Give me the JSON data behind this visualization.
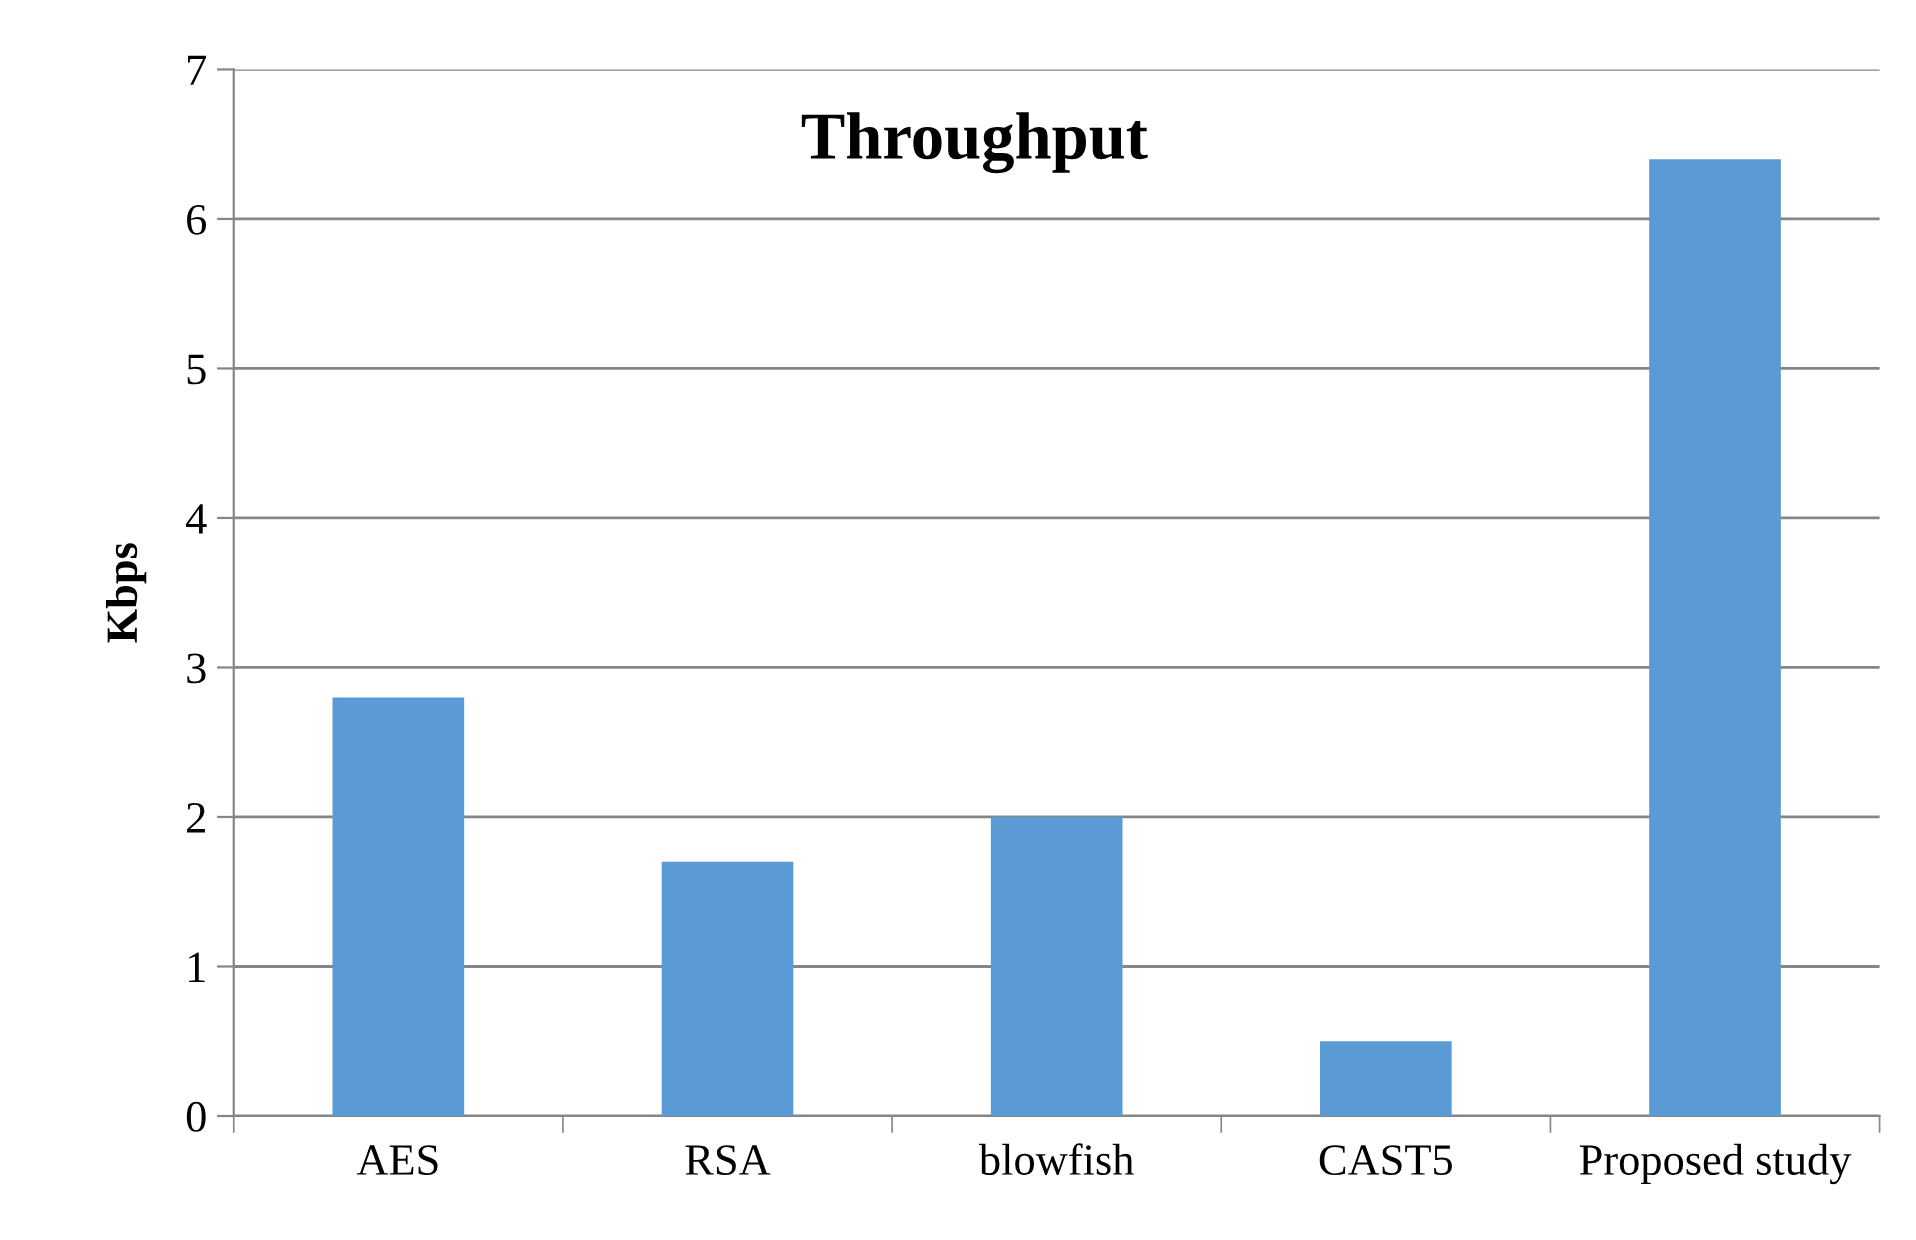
{
  "chart_data": {
    "type": "bar",
    "title": "Throughput",
    "ylabel": "Kbps",
    "categories": [
      "AES",
      "RSA",
      "blowfish",
      "CAST5",
      "Proposed study"
    ],
    "values": [
      2.8,
      1.7,
      2.0,
      0.5,
      6.4
    ],
    "color": "#5b9bd5",
    "ylim": [
      0,
      7
    ],
    "yticks": [
      0,
      1,
      2,
      3,
      4,
      5,
      6,
      7
    ],
    "grid": "y",
    "legend": false
  }
}
